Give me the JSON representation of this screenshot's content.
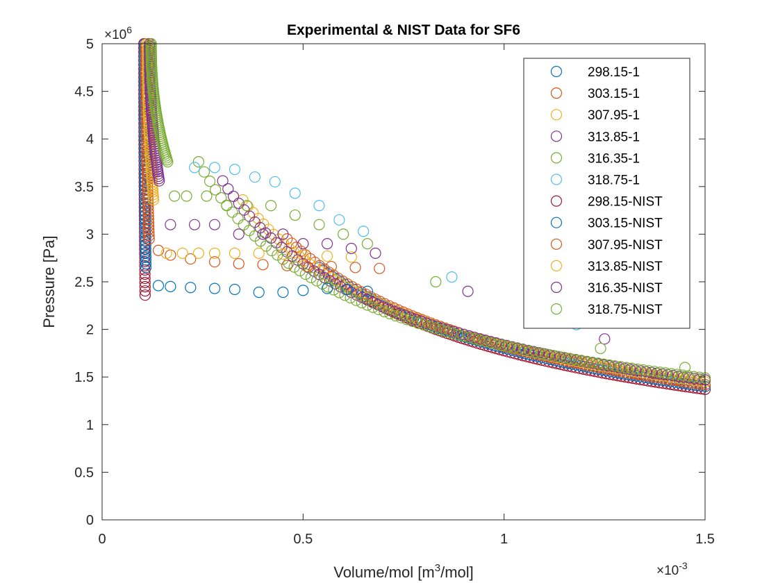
{
  "chart_data": {
    "type": "scatter",
    "title": "Experimental & NIST Data for SF6",
    "xlabel": {
      "prefix": "Volume/mol [m",
      "sup": "3",
      "suffix": "/mol]"
    },
    "ylabel": "Pressure [Pa]",
    "x_exponent": {
      "base": "×10",
      "exp": "-3"
    },
    "y_exponent": {
      "base": "×10",
      "exp": "6"
    },
    "xlim": [
      0,
      0.0015
    ],
    "ylim": [
      0,
      5000000
    ],
    "xticks": [
      0,
      0.0005,
      0.001,
      0.0015
    ],
    "xtick_labels": [
      "0",
      "0.5",
      "1",
      "1.5"
    ],
    "yticks": [
      0,
      500000,
      1000000,
      1500000,
      2000000,
      2500000,
      3000000,
      3500000,
      4000000,
      4500000,
      5000000
    ],
    "ytick_labels": [
      "0",
      "0.5",
      "1",
      "1.5",
      "2",
      "2.5",
      "3",
      "3.5",
      "4",
      "4.5",
      "5"
    ],
    "grid": false,
    "legend_position": "top-right",
    "colors": {
      "blue": "#0072BD",
      "orange": "#D95319",
      "yellow": "#EDB120",
      "purple": "#7E2F8E",
      "green": "#77AC30",
      "cyan": "#4DBEEE",
      "darkred": "#A2142F"
    },
    "series": [
      {
        "name": "298.15-1",
        "color": "#0072BD",
        "points": [
          [
            0.00014,
            2460000
          ],
          [
            0.00017,
            2450000
          ],
          [
            0.00022,
            2440000
          ],
          [
            0.00028,
            2430000
          ],
          [
            0.00033,
            2420000
          ],
          [
            0.00039,
            2390000
          ],
          [
            0.00045,
            2390000
          ],
          [
            0.0005,
            2410000
          ],
          [
            0.00056,
            2430000
          ],
          [
            0.00061,
            2420000
          ],
          [
            0.00066,
            2400000
          ]
        ]
      },
      {
        "name": "303.15-1",
        "color": "#D95319",
        "points": [
          [
            0.00014,
            2830000
          ],
          [
            0.00017,
            2780000
          ],
          [
            0.00022,
            2740000
          ],
          [
            0.00028,
            2710000
          ],
          [
            0.00034,
            2690000
          ],
          [
            0.0004,
            2680000
          ],
          [
            0.00046,
            2670000
          ],
          [
            0.00051,
            2660000
          ],
          [
            0.00057,
            2660000
          ],
          [
            0.00063,
            2650000
          ],
          [
            0.00069,
            2640000
          ]
        ]
      },
      {
        "name": "307.95-1",
        "color": "#EDB120",
        "points": [
          [
            0.00016,
            2800000
          ],
          [
            0.0002,
            2800000
          ],
          [
            0.00024,
            2800000
          ],
          [
            0.00028,
            2800000
          ],
          [
            0.00033,
            2800000
          ],
          [
            0.00039,
            2800000
          ],
          [
            0.00045,
            2790000
          ],
          [
            0.0005,
            2780000
          ],
          [
            0.00056,
            2770000
          ],
          [
            0.00062,
            2760000
          ]
        ]
      },
      {
        "name": "313.85-1",
        "color": "#7E2F8E",
        "points": [
          [
            0.00017,
            3100000
          ],
          [
            0.00023,
            3100000
          ],
          [
            0.00028,
            3100000
          ],
          [
            0.00034,
            3000000
          ],
          [
            0.0004,
            3000000
          ],
          [
            0.00045,
            3000000
          ],
          [
            0.0005,
            2900000
          ],
          [
            0.00056,
            2900000
          ],
          [
            0.00062,
            2850000
          ],
          [
            0.00068,
            2800000
          ],
          [
            0.00091,
            2400000
          ],
          [
            0.00125,
            1900000
          ]
        ]
      },
      {
        "name": "316.35-1",
        "color": "#77AC30",
        "points": [
          [
            0.00018,
            3400000
          ],
          [
            0.00021,
            3400000
          ],
          [
            0.00026,
            3400000
          ],
          [
            0.00031,
            3300000
          ],
          [
            0.00036,
            3300000
          ],
          [
            0.00042,
            3300000
          ],
          [
            0.00048,
            3200000
          ],
          [
            0.00054,
            3100000
          ],
          [
            0.0006,
            3000000
          ],
          [
            0.00066,
            2900000
          ],
          [
            0.00083,
            2500000
          ],
          [
            0.00124,
            1800000
          ],
          [
            0.00145,
            1600000
          ]
        ]
      },
      {
        "name": "318.75-1",
        "color": "#4DBEEE",
        "points": [
          [
            0.00023,
            3700000
          ],
          [
            0.00028,
            3700000
          ],
          [
            0.00033,
            3680000
          ],
          [
            0.00038,
            3600000
          ],
          [
            0.00043,
            3550000
          ],
          [
            0.00048,
            3430000
          ],
          [
            0.00054,
            3300000
          ],
          [
            0.00059,
            3150000
          ],
          [
            0.00065,
            3030000
          ],
          [
            0.00087,
            2550000
          ],
          [
            0.00109,
            2200000
          ],
          [
            0.00118,
            2050000
          ]
        ]
      },
      {
        "name": "298.15-NIST",
        "color": "#A2142F",
        "V_liquid": [
          0.000104,
          0.000107
        ],
        "P_liquid": [
          2360000,
          5000000
        ],
        "V_gas": [
          0.00065,
          0.0015
        ],
        "P_gas": [
          2340000,
          1370000
        ]
      },
      {
        "name": "303.15-NIST",
        "color": "#0072BD",
        "V_liquid": [
          0.000106,
          0.000109
        ],
        "P_liquid": [
          2650000,
          5000000
        ],
        "V_gas": [
          0.00054,
          0.0015
        ],
        "P_gas": [
          2650000,
          1400000
        ]
      },
      {
        "name": "307.95-NIST",
        "color": "#D95319",
        "V_liquid": [
          0.000109,
          0.000117
        ],
        "P_liquid": [
          2950000,
          5000000
        ],
        "V_gas": [
          0.00046,
          0.0015
        ],
        "P_gas": [
          2950000,
          1420000
        ]
      },
      {
        "name": "313.85-NIST",
        "color": "#EDB120",
        "V_liquid": [
          0.000113,
          0.000128
        ],
        "P_liquid": [
          3360000,
          5000000
        ],
        "V_gas": [
          0.00035,
          0.0015
        ],
        "P_gas": [
          3360000,
          1450000
        ]
      },
      {
        "name": "316.35-NIST",
        "color": "#7E2F8E",
        "V_liquid": [
          0.000118,
          0.000142
        ],
        "P_liquid": [
          3560000,
          5000000
        ],
        "V_gas": [
          0.0003,
          0.0015
        ],
        "P_gas": [
          3560000,
          1470000
        ]
      },
      {
        "name": "318.75-NIST",
        "color": "#77AC30",
        "V_liquid": [
          0.000122,
          0.000163
        ],
        "P_liquid": [
          3760000,
          5000000
        ],
        "V_gas": [
          0.00024,
          0.0015
        ],
        "P_gas": [
          3760000,
          1490000
        ]
      }
    ]
  }
}
